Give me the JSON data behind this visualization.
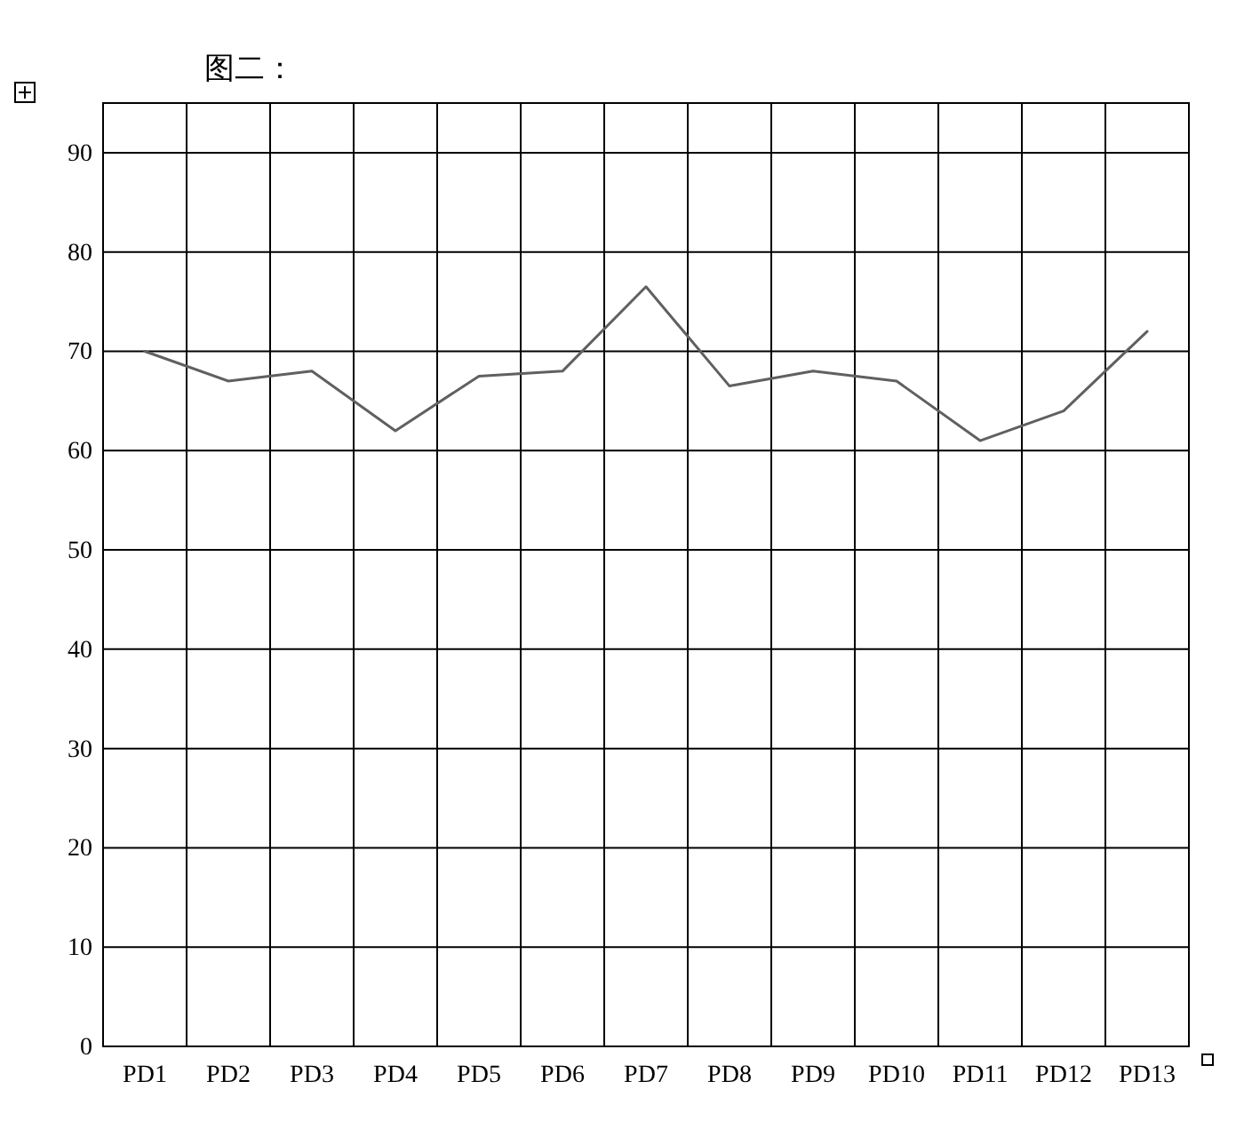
{
  "chart_data": {
    "type": "line",
    "title": "图二：",
    "categories": [
      "PD1",
      "PD2",
      "PD3",
      "PD4",
      "PD5",
      "PD6",
      "PD7",
      "PD8",
      "PD9",
      "PD10",
      "PD11",
      "PD12",
      "PD13"
    ],
    "values": [
      70,
      67,
      68,
      62,
      67.5,
      68,
      76.5,
      66.5,
      68,
      67,
      61,
      64,
      72
    ],
    "color": "#606060",
    "ylim": [
      0,
      95
    ],
    "yticks": [
      0,
      10,
      20,
      30,
      40,
      50,
      60,
      70,
      80,
      90
    ],
    "grid": true
  }
}
